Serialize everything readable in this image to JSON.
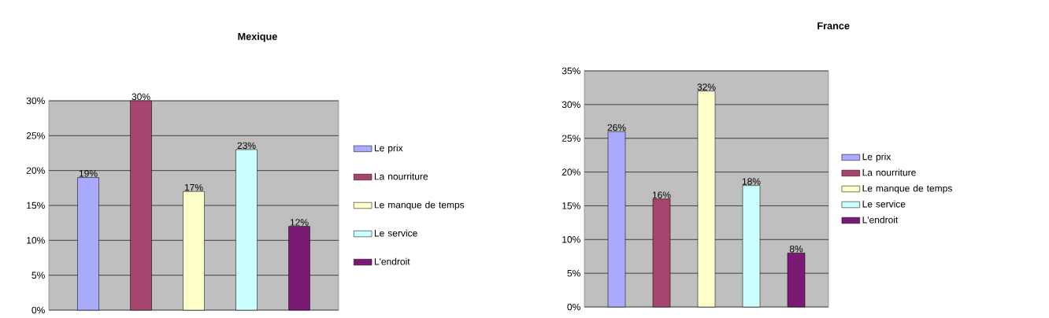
{
  "chart_data": [
    {
      "type": "bar",
      "title": "Mexique",
      "categories": [
        null
      ],
      "series": [
        {
          "name": "Le prix",
          "color": "#aaaaff",
          "values": [
            19
          ],
          "value_labels": [
            "19%"
          ]
        },
        {
          "name": "La nourriture",
          "color": "#a8456f",
          "values": [
            30
          ],
          "value_labels": [
            "30%"
          ]
        },
        {
          "name": "Le manque de temps",
          "color": "#ffffcc",
          "values": [
            17
          ],
          "value_labels": [
            "17%"
          ]
        },
        {
          "name": "Le service",
          "color": "#ccffff",
          "values": [
            23
          ],
          "value_labels": [
            "23%"
          ]
        },
        {
          "name": "L'endroit",
          "color": "#7b1a75",
          "values": [
            12
          ],
          "value_labels": [
            "12%"
          ]
        }
      ],
      "ylim": [
        0,
        30
      ],
      "yticks": [
        {
          "value": 0,
          "label": "0%"
        },
        {
          "value": 5,
          "label": "5%"
        },
        {
          "value": 10,
          "label": "10%"
        },
        {
          "value": 15,
          "label": "15%"
        },
        {
          "value": 20,
          "label": "20%"
        },
        {
          "value": 25,
          "label": "25%"
        },
        {
          "value": 30,
          "label": "30%"
        }
      ],
      "grid": "y",
      "legend": "right"
    },
    {
      "type": "bar",
      "title": "France",
      "categories": [
        null
      ],
      "series": [
        {
          "name": "Le prix",
          "color": "#aaaaff",
          "values": [
            26
          ],
          "value_labels": [
            "26%"
          ]
        },
        {
          "name": "La nourriture",
          "color": "#a8456f",
          "values": [
            16
          ],
          "value_labels": [
            "16%"
          ]
        },
        {
          "name": "Le manque de temps",
          "color": "#ffffcc",
          "values": [
            32
          ],
          "value_labels": [
            "32%"
          ]
        },
        {
          "name": "Le service",
          "color": "#ccffff",
          "values": [
            18
          ],
          "value_labels": [
            "18%"
          ]
        },
        {
          "name": "L'endroit",
          "color": "#7b1a75",
          "values": [
            8
          ],
          "value_labels": [
            "8%"
          ]
        }
      ],
      "ylim": [
        0,
        35
      ],
      "yticks": [
        {
          "value": 0,
          "label": "0%"
        },
        {
          "value": 5,
          "label": "5%"
        },
        {
          "value": 10,
          "label": "10%"
        },
        {
          "value": 15,
          "label": "15%"
        },
        {
          "value": 20,
          "label": "20%"
        },
        {
          "value": 25,
          "label": "25%"
        },
        {
          "value": 30,
          "label": "30%"
        },
        {
          "value": 35,
          "label": "35%"
        }
      ],
      "grid": "y",
      "legend": "right"
    }
  ]
}
